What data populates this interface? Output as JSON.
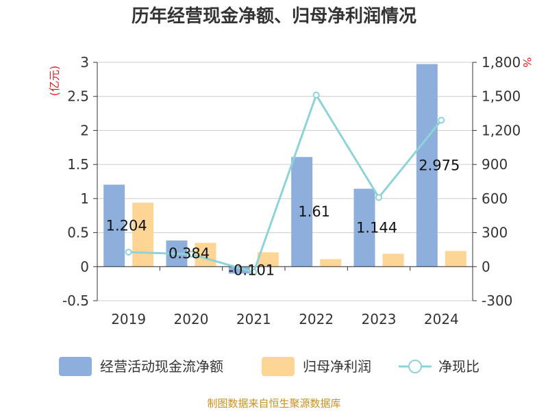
{
  "title": "历年经营现金净额、归母净利润情况",
  "source": "制图数据来自恒生聚源数据库",
  "chart_data": {
    "type": "bar",
    "categories": [
      "2019",
      "2020",
      "2021",
      "2022",
      "2023",
      "2024"
    ],
    "left_axis": {
      "unit": "(亿元)",
      "min": -0.5,
      "max": 3,
      "ticks": [
        -0.5,
        0,
        0.5,
        1,
        1.5,
        2,
        2.5,
        3
      ],
      "tick_labels": [
        "-0.5",
        "0",
        "0.5",
        "1",
        "1.5",
        "2",
        "2.5",
        "3"
      ]
    },
    "right_axis": {
      "unit": "%",
      "min": -300,
      "max": 1800,
      "ticks": [
        -300,
        0,
        300,
        600,
        900,
        1200,
        1500,
        1800
      ],
      "tick_labels": [
        "-300",
        "0",
        "300",
        "600",
        "900",
        "1,200",
        "1,500",
        "1,800"
      ]
    },
    "series": [
      {
        "name": "经营活动现金流净额",
        "type": "bar",
        "axis": "left",
        "color": "#8eafdc",
        "values": [
          1.204,
          0.384,
          -0.101,
          1.61,
          1.144,
          2.975
        ],
        "labels": [
          "1.204",
          "0.384",
          "-0.101",
          "1.61",
          "1.144",
          "2.975"
        ]
      },
      {
        "name": "归母净利润",
        "type": "bar",
        "axis": "left",
        "color": "#fdd696",
        "values": [
          0.94,
          0.35,
          0.21,
          0.11,
          0.19,
          0.23
        ]
      },
      {
        "name": "净现比",
        "type": "line",
        "axis": "right",
        "color": "#8dd3d8",
        "values": [
          128,
          110,
          -48,
          1512,
          610,
          1290
        ]
      }
    ]
  }
}
